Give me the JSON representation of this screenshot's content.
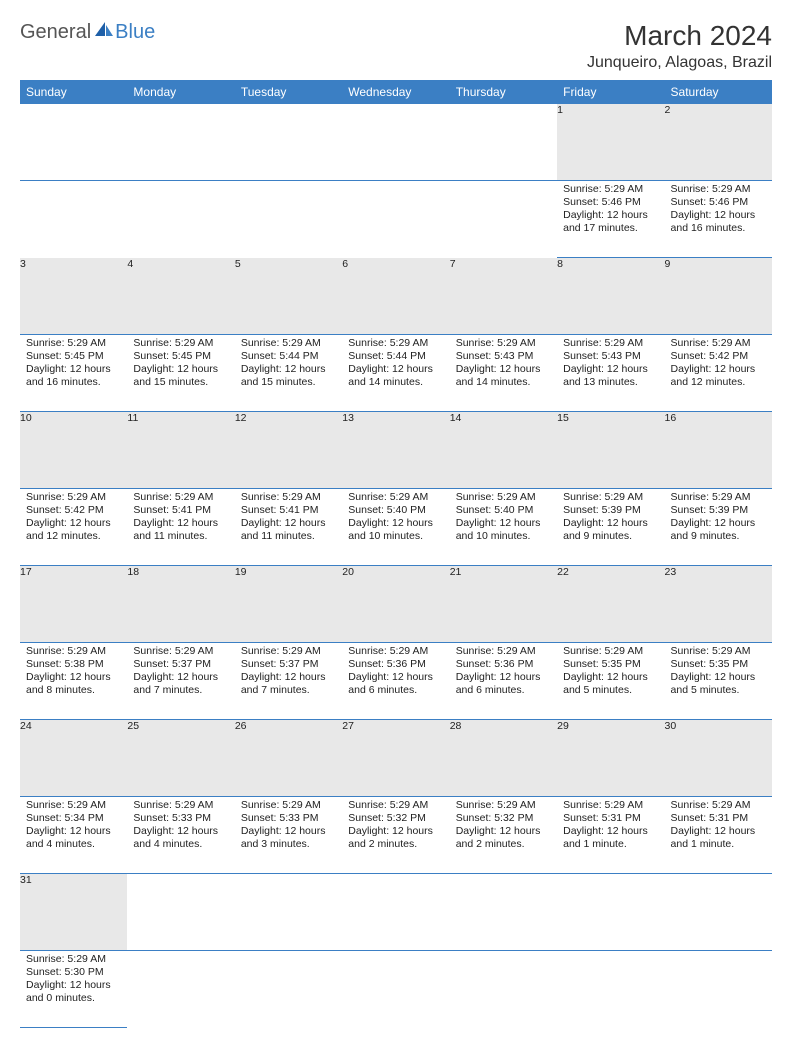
{
  "logo": {
    "text1": "General",
    "text2": "Blue"
  },
  "title": "March 2024",
  "location": "Junqueiro, Alagoas, Brazil",
  "colors": {
    "header_bg": "#3b7fc4",
    "header_fg": "#ffffff",
    "daynum_bg": "#e8e8e8",
    "row_divider": "#3b7fc4"
  },
  "weekdays": [
    "Sunday",
    "Monday",
    "Tuesday",
    "Wednesday",
    "Thursday",
    "Friday",
    "Saturday"
  ],
  "weeks": [
    [
      null,
      null,
      null,
      null,
      null,
      {
        "n": "1",
        "sr": "Sunrise: 5:29 AM",
        "ss": "Sunset: 5:46 PM",
        "dl": "Daylight: 12 hours and 17 minutes."
      },
      {
        "n": "2",
        "sr": "Sunrise: 5:29 AM",
        "ss": "Sunset: 5:46 PM",
        "dl": "Daylight: 12 hours and 16 minutes."
      }
    ],
    [
      {
        "n": "3",
        "sr": "Sunrise: 5:29 AM",
        "ss": "Sunset: 5:45 PM",
        "dl": "Daylight: 12 hours and 16 minutes."
      },
      {
        "n": "4",
        "sr": "Sunrise: 5:29 AM",
        "ss": "Sunset: 5:45 PM",
        "dl": "Daylight: 12 hours and 15 minutes."
      },
      {
        "n": "5",
        "sr": "Sunrise: 5:29 AM",
        "ss": "Sunset: 5:44 PM",
        "dl": "Daylight: 12 hours and 15 minutes."
      },
      {
        "n": "6",
        "sr": "Sunrise: 5:29 AM",
        "ss": "Sunset: 5:44 PM",
        "dl": "Daylight: 12 hours and 14 minutes."
      },
      {
        "n": "7",
        "sr": "Sunrise: 5:29 AM",
        "ss": "Sunset: 5:43 PM",
        "dl": "Daylight: 12 hours and 14 minutes."
      },
      {
        "n": "8",
        "sr": "Sunrise: 5:29 AM",
        "ss": "Sunset: 5:43 PM",
        "dl": "Daylight: 12 hours and 13 minutes."
      },
      {
        "n": "9",
        "sr": "Sunrise: 5:29 AM",
        "ss": "Sunset: 5:42 PM",
        "dl": "Daylight: 12 hours and 12 minutes."
      }
    ],
    [
      {
        "n": "10",
        "sr": "Sunrise: 5:29 AM",
        "ss": "Sunset: 5:42 PM",
        "dl": "Daylight: 12 hours and 12 minutes."
      },
      {
        "n": "11",
        "sr": "Sunrise: 5:29 AM",
        "ss": "Sunset: 5:41 PM",
        "dl": "Daylight: 12 hours and 11 minutes."
      },
      {
        "n": "12",
        "sr": "Sunrise: 5:29 AM",
        "ss": "Sunset: 5:41 PM",
        "dl": "Daylight: 12 hours and 11 minutes."
      },
      {
        "n": "13",
        "sr": "Sunrise: 5:29 AM",
        "ss": "Sunset: 5:40 PM",
        "dl": "Daylight: 12 hours and 10 minutes."
      },
      {
        "n": "14",
        "sr": "Sunrise: 5:29 AM",
        "ss": "Sunset: 5:40 PM",
        "dl": "Daylight: 12 hours and 10 minutes."
      },
      {
        "n": "15",
        "sr": "Sunrise: 5:29 AM",
        "ss": "Sunset: 5:39 PM",
        "dl": "Daylight: 12 hours and 9 minutes."
      },
      {
        "n": "16",
        "sr": "Sunrise: 5:29 AM",
        "ss": "Sunset: 5:39 PM",
        "dl": "Daylight: 12 hours and 9 minutes."
      }
    ],
    [
      {
        "n": "17",
        "sr": "Sunrise: 5:29 AM",
        "ss": "Sunset: 5:38 PM",
        "dl": "Daylight: 12 hours and 8 minutes."
      },
      {
        "n": "18",
        "sr": "Sunrise: 5:29 AM",
        "ss": "Sunset: 5:37 PM",
        "dl": "Daylight: 12 hours and 7 minutes."
      },
      {
        "n": "19",
        "sr": "Sunrise: 5:29 AM",
        "ss": "Sunset: 5:37 PM",
        "dl": "Daylight: 12 hours and 7 minutes."
      },
      {
        "n": "20",
        "sr": "Sunrise: 5:29 AM",
        "ss": "Sunset: 5:36 PM",
        "dl": "Daylight: 12 hours and 6 minutes."
      },
      {
        "n": "21",
        "sr": "Sunrise: 5:29 AM",
        "ss": "Sunset: 5:36 PM",
        "dl": "Daylight: 12 hours and 6 minutes."
      },
      {
        "n": "22",
        "sr": "Sunrise: 5:29 AM",
        "ss": "Sunset: 5:35 PM",
        "dl": "Daylight: 12 hours and 5 minutes."
      },
      {
        "n": "23",
        "sr": "Sunrise: 5:29 AM",
        "ss": "Sunset: 5:35 PM",
        "dl": "Daylight: 12 hours and 5 minutes."
      }
    ],
    [
      {
        "n": "24",
        "sr": "Sunrise: 5:29 AM",
        "ss": "Sunset: 5:34 PM",
        "dl": "Daylight: 12 hours and 4 minutes."
      },
      {
        "n": "25",
        "sr": "Sunrise: 5:29 AM",
        "ss": "Sunset: 5:33 PM",
        "dl": "Daylight: 12 hours and 4 minutes."
      },
      {
        "n": "26",
        "sr": "Sunrise: 5:29 AM",
        "ss": "Sunset: 5:33 PM",
        "dl": "Daylight: 12 hours and 3 minutes."
      },
      {
        "n": "27",
        "sr": "Sunrise: 5:29 AM",
        "ss": "Sunset: 5:32 PM",
        "dl": "Daylight: 12 hours and 2 minutes."
      },
      {
        "n": "28",
        "sr": "Sunrise: 5:29 AM",
        "ss": "Sunset: 5:32 PM",
        "dl": "Daylight: 12 hours and 2 minutes."
      },
      {
        "n": "29",
        "sr": "Sunrise: 5:29 AM",
        "ss": "Sunset: 5:31 PM",
        "dl": "Daylight: 12 hours and 1 minute."
      },
      {
        "n": "30",
        "sr": "Sunrise: 5:29 AM",
        "ss": "Sunset: 5:31 PM",
        "dl": "Daylight: 12 hours and 1 minute."
      }
    ],
    [
      {
        "n": "31",
        "sr": "Sunrise: 5:29 AM",
        "ss": "Sunset: 5:30 PM",
        "dl": "Daylight: 12 hours and 0 minutes."
      },
      null,
      null,
      null,
      null,
      null,
      null
    ]
  ]
}
